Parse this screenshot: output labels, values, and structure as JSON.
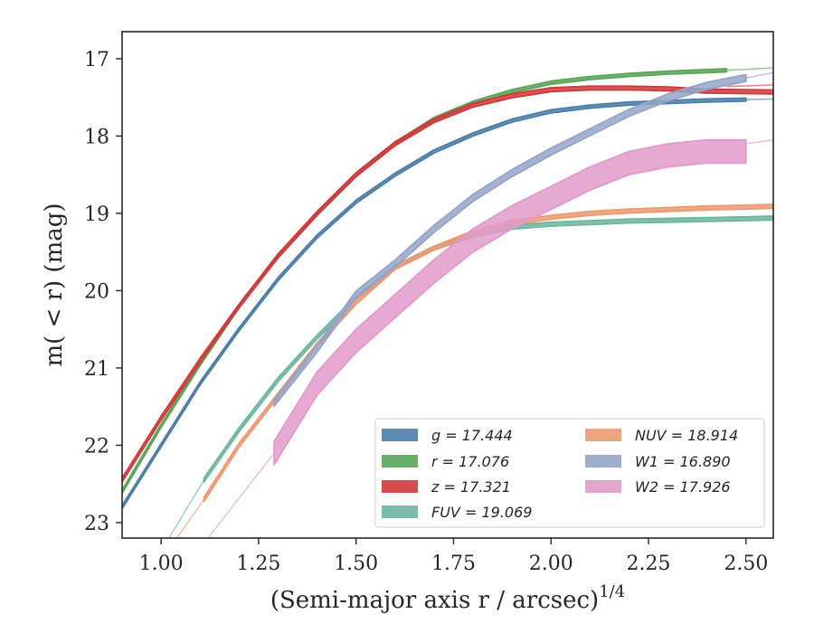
{
  "chart_data": {
    "type": "line",
    "title": "",
    "xlabel": "(Semi-major axis r / arcsec)",
    "xlabel_superscript": "1/4",
    "ylabel": "m( < r) (mag)",
    "xlim": [
      0.9,
      2.57
    ],
    "ylim": [
      23.2,
      16.65
    ],
    "y_inverted": true,
    "grid": false,
    "legend_position": "lower-right",
    "x_ticks": [
      "1.00",
      "1.25",
      "1.50",
      "1.75",
      "2.00",
      "2.25",
      "2.50"
    ],
    "y_ticks": [
      "17",
      "18",
      "19",
      "20",
      "21",
      "22",
      "23"
    ],
    "series": [
      {
        "name": "g",
        "legend_label": "g = 17.444",
        "color": "#4c7ea8",
        "width_mag": 0.04,
        "main": {
          "x": [
            0.9,
            1.0,
            1.1,
            1.2,
            1.3,
            1.4,
            1.5,
            1.6,
            1.7,
            1.8,
            1.9,
            2.0,
            2.1,
            2.2,
            2.3,
            2.4,
            2.5
          ],
          "y": [
            22.8,
            22.0,
            21.2,
            20.5,
            19.85,
            19.3,
            18.85,
            18.5,
            18.2,
            17.98,
            17.8,
            17.68,
            17.62,
            17.58,
            17.56,
            17.54,
            17.53
          ]
        },
        "ext": {
          "x": [
            2.5,
            2.57
          ],
          "y": [
            17.53,
            17.52
          ]
        }
      },
      {
        "name": "r",
        "legend_label": "r = 17.076",
        "color": "#5aa55a",
        "width_mag": 0.04,
        "main": {
          "x": [
            0.9,
            1.0,
            1.1,
            1.2,
            1.3,
            1.4,
            1.5,
            1.6,
            1.7,
            1.8,
            1.9,
            2.0,
            2.1,
            2.2,
            2.3,
            2.4,
            2.45
          ],
          "y": [
            22.6,
            21.75,
            20.95,
            20.2,
            19.55,
            19.0,
            18.5,
            18.1,
            17.78,
            17.57,
            17.42,
            17.31,
            17.25,
            17.21,
            17.18,
            17.16,
            17.15
          ]
        },
        "ext": {
          "x": [
            2.45,
            2.57
          ],
          "y": [
            17.15,
            17.12
          ]
        }
      },
      {
        "name": "z",
        "legend_label": "z = 17.321",
        "color": "#d03a3a",
        "width_mag": 0.05,
        "main": {
          "x": [
            0.9,
            1.0,
            1.1,
            1.2,
            1.3,
            1.4,
            1.5,
            1.6,
            1.7,
            1.8,
            1.9,
            2.0,
            2.1,
            2.2,
            2.3,
            2.4,
            2.57
          ],
          "y": [
            22.45,
            21.65,
            20.9,
            20.2,
            19.55,
            19.0,
            18.5,
            18.1,
            17.8,
            17.6,
            17.48,
            17.4,
            17.38,
            17.38,
            17.39,
            17.42,
            17.43
          ]
        },
        "ext": {
          "x": [
            2.45,
            2.57
          ],
          "y": [
            17.36,
            17.34
          ]
        }
      },
      {
        "name": "FUV",
        "legend_label": "FUV = 19.069",
        "color": "#6fb5a0",
        "width_mag": 0.05,
        "pre": {
          "x": [
            1.02,
            1.11
          ],
          "y": [
            23.2,
            22.45
          ]
        },
        "main": {
          "x": [
            1.11,
            1.2,
            1.3,
            1.4,
            1.5,
            1.6,
            1.7,
            1.8,
            1.9,
            2.0,
            2.1,
            2.2,
            2.3,
            2.4,
            2.5,
            2.57
          ],
          "y": [
            22.45,
            21.8,
            21.15,
            20.6,
            20.1,
            19.7,
            19.45,
            19.28,
            19.18,
            19.14,
            19.12,
            19.1,
            19.09,
            19.08,
            19.07,
            19.06
          ]
        }
      },
      {
        "name": "NUV",
        "legend_label": "NUV = 18.914",
        "color": "#eb9a72",
        "width_mag": 0.05,
        "pre": {
          "x": [
            1.04,
            1.11
          ],
          "y": [
            23.2,
            22.7
          ]
        },
        "main": {
          "x": [
            1.11,
            1.2,
            1.3,
            1.4,
            1.5,
            1.6,
            1.7,
            1.8,
            1.9,
            2.0,
            2.1,
            2.2,
            2.3,
            2.4,
            2.5,
            2.57
          ],
          "y": [
            22.7,
            22.0,
            21.35,
            20.7,
            20.15,
            19.7,
            19.45,
            19.25,
            19.12,
            19.05,
            19.0,
            18.97,
            18.95,
            18.93,
            18.92,
            18.91
          ]
        }
      },
      {
        "name": "W1",
        "legend_label": "W1 = 16.890",
        "color": "#95a4c8",
        "width_mag": 0.09,
        "main": {
          "x": [
            1.29,
            1.4,
            1.5,
            1.6,
            1.7,
            1.8,
            1.9,
            2.0,
            2.1,
            2.2,
            2.3,
            2.4,
            2.5
          ],
          "y": [
            21.45,
            20.75,
            20.05,
            19.65,
            19.2,
            18.8,
            18.48,
            18.2,
            17.95,
            17.7,
            17.5,
            17.35,
            17.25
          ]
        },
        "ext": {
          "x": [
            2.5,
            2.57
          ],
          "y": [
            17.25,
            17.18
          ]
        }
      },
      {
        "name": "W2",
        "legend_label": "W2 = 17.926",
        "color": "#e29ac9",
        "width_mag": 0.3,
        "pre": {
          "x": [
            1.12,
            1.29
          ],
          "y": [
            23.2,
            22.1
          ]
        },
        "main": {
          "x": [
            1.29,
            1.4,
            1.5,
            1.6,
            1.7,
            1.8,
            1.9,
            2.0,
            2.1,
            2.2,
            2.3,
            2.4,
            2.5
          ],
          "y": [
            22.1,
            21.2,
            20.65,
            20.2,
            19.75,
            19.35,
            19.05,
            18.8,
            18.55,
            18.35,
            18.25,
            18.2,
            18.2
          ]
        },
        "ext": {
          "x": [
            2.5,
            2.57
          ],
          "y": [
            18.1,
            18.05
          ]
        }
      }
    ]
  }
}
